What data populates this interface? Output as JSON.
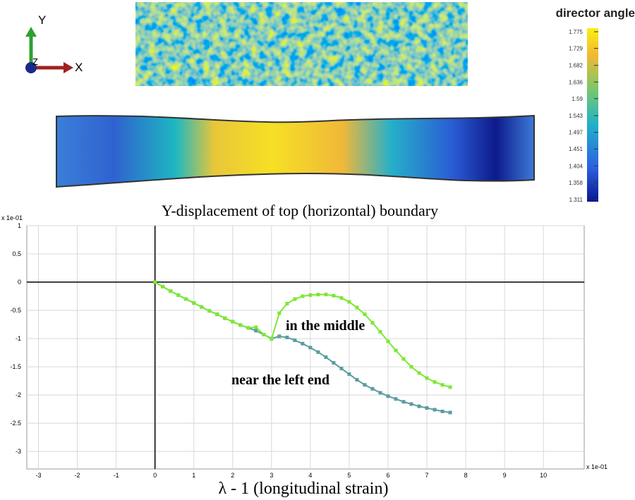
{
  "axes_triad": {
    "y": "Y",
    "z": "Z",
    "x": "X"
  },
  "colorbar": {
    "title": "director angle",
    "ticks": [
      1.775,
      1.729,
      1.682,
      1.636,
      1.59,
      1.543,
      1.497,
      1.451,
      1.404,
      1.358,
      1.311
    ]
  },
  "chart_data": {
    "type": "line",
    "title": "Y-displacement of top (horizontal) boundary",
    "x_label": "λ - 1 (longitudinal strain)",
    "x_axis_unit": "x 1e-01",
    "y_axis_unit": "x 1e-01",
    "x": [
      0,
      0.2,
      0.4,
      0.6,
      0.8,
      1,
      1.2,
      1.4,
      1.6,
      1.8,
      2,
      2.2,
      2.4,
      2.6,
      2.8,
      3,
      3.2,
      3.4,
      3.6,
      3.8,
      4,
      4.2,
      4.4,
      4.6,
      4.8,
      5,
      5.2,
      5.4,
      5.6,
      5.8,
      6,
      6.2,
      6.4,
      6.6,
      6.8,
      7,
      7.2,
      7.4,
      7.6
    ],
    "series": [
      {
        "name": "in the middle",
        "color": "#7ee832",
        "values": [
          0,
          -0.08,
          -0.16,
          -0.23,
          -0.3,
          -0.37,
          -0.44,
          -0.51,
          -0.57,
          -0.64,
          -0.7,
          -0.76,
          -0.81,
          -0.8,
          -0.93,
          -1.01,
          -0.55,
          -0.38,
          -0.3,
          -0.25,
          -0.23,
          -0.22,
          -0.22,
          -0.24,
          -0.28,
          -0.35,
          -0.45,
          -0.57,
          -0.72,
          -0.88,
          -1.05,
          -1.21,
          -1.36,
          -1.5,
          -1.61,
          -1.7,
          -1.77,
          -1.82,
          -1.86
        ]
      },
      {
        "name": "near the left end",
        "color": "#5b9ca0",
        "values": [
          0,
          -0.08,
          -0.16,
          -0.23,
          -0.3,
          -0.37,
          -0.44,
          -0.51,
          -0.57,
          -0.64,
          -0.7,
          -0.76,
          -0.81,
          -0.86,
          -0.93,
          -1.0,
          -0.96,
          -0.98,
          -1.03,
          -1.09,
          -1.16,
          -1.24,
          -1.33,
          -1.43,
          -1.53,
          -1.63,
          -1.73,
          -1.82,
          -1.89,
          -1.96,
          -2.02,
          -2.07,
          -2.12,
          -2.16,
          -2.2,
          -2.23,
          -2.26,
          -2.29,
          -2.31
        ]
      }
    ],
    "xlim": [
      -3.3,
      11.05
    ],
    "ylim": [
      -3.31,
      1
    ],
    "xticks": [
      -3,
      -2,
      -1,
      0,
      1,
      2,
      3,
      4,
      5,
      6,
      7,
      8,
      9,
      10
    ],
    "yticks": [
      -3,
      -2.5,
      -2,
      -1.5,
      -1,
      -0.5,
      0,
      0.5,
      1
    ],
    "grid": true
  }
}
